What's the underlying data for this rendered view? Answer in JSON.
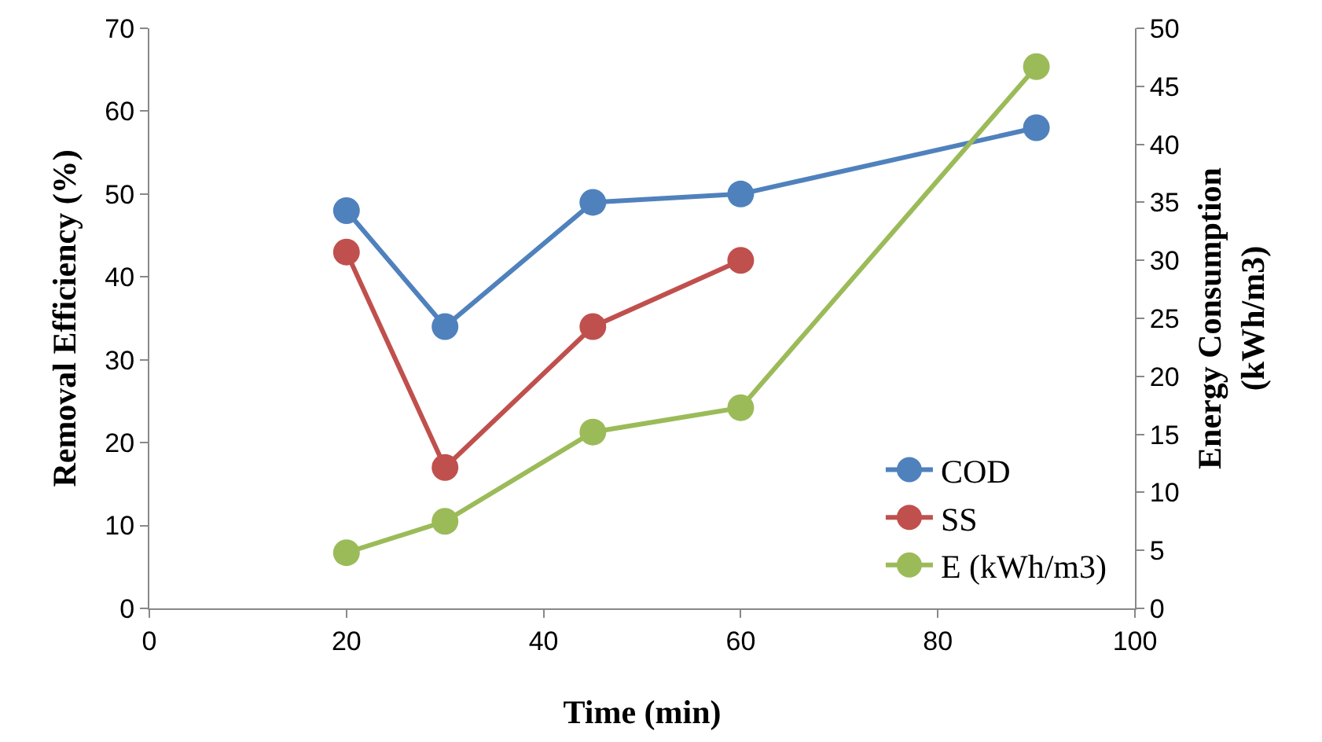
{
  "chart_data": {
    "type": "line",
    "xlabel": "Time (min)",
    "ylabel": "Removal Efficiency (%)",
    "y2label": "Energy Consumption (kWh/m3)",
    "xlim": [
      0,
      100
    ],
    "xticks": [
      0,
      20,
      40,
      60,
      80,
      100
    ],
    "ylim": [
      0,
      70
    ],
    "yticks": [
      0,
      10,
      20,
      30,
      40,
      50,
      60,
      70
    ],
    "y2lim": [
      0,
      50
    ],
    "y2ticks": [
      0,
      5,
      10,
      15,
      20,
      25,
      30,
      35,
      40,
      45,
      50
    ],
    "grid": false,
    "legend": "bottom right",
    "marker": "circle",
    "line_style": "solid",
    "series": [
      {
        "name": "COD",
        "color": "#4f81bd",
        "x": [
          20,
          30,
          45,
          60,
          90
        ],
        "values": [
          48,
          34,
          49,
          50,
          58
        ]
      },
      {
        "name": "SS",
        "color": "#c0504d",
        "x": [
          20,
          30,
          45,
          60
        ],
        "values": [
          43,
          17,
          34,
          42
        ]
      },
      {
        "name": "E (kWh/m3)",
        "color": "#9bbb59",
        "axis": "y2",
        "x": [
          20,
          30,
          45,
          60,
          90
        ],
        "values": [
          4.8,
          7.5,
          15.2,
          17.3,
          46.7
        ]
      }
    ]
  }
}
